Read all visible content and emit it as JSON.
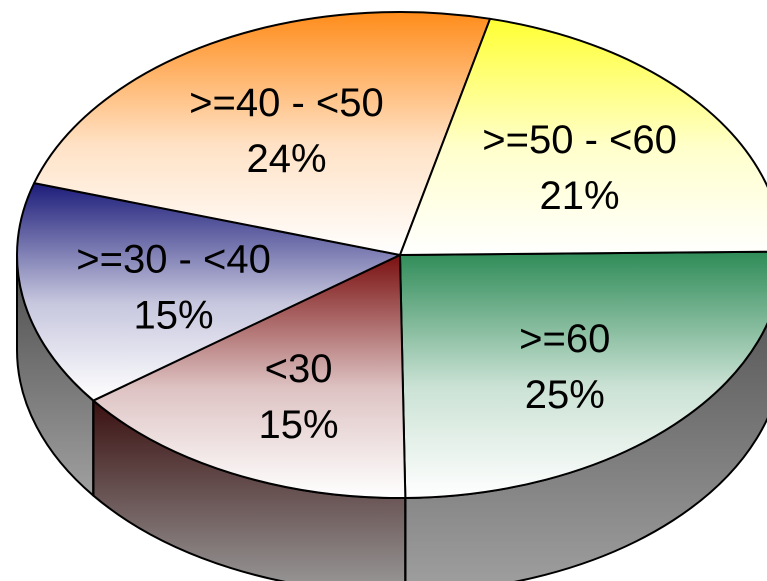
{
  "chart_data": {
    "type": "pie",
    "style": "3d",
    "title": "",
    "slices": [
      {
        "label": ">=60",
        "percent_label": "25%",
        "value": 25,
        "color": "#2e8b57"
      },
      {
        "label": "<30",
        "percent_label": "15%",
        "value": 15,
        "color": "#7a1010"
      },
      {
        "label": ">=30 - <40",
        "percent_label": "15%",
        "value": 15,
        "color": "#1c1c7a"
      },
      {
        "label": ">=40 - <50",
        "percent_label": "24%",
        "value": 24,
        "color": "#ff8c1a"
      },
      {
        "label": ">=50 - <60",
        "percent_label": "21%",
        "value": 21,
        "color": "#ffff33"
      }
    ],
    "side_color": "#4a4a4a",
    "legend": "none",
    "grid": false
  }
}
